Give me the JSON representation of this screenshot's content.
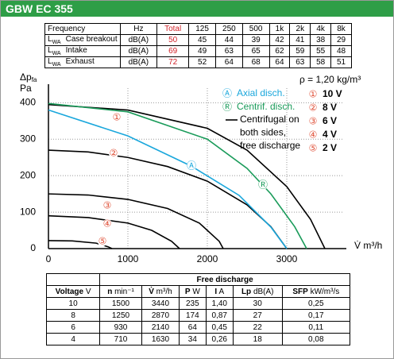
{
  "header": {
    "title": "GBW EC 355"
  },
  "sound_table": {
    "columns": [
      "Frequency",
      "Hz",
      "Total",
      "125",
      "250",
      "500",
      "1k",
      "2k",
      "4k",
      "8k"
    ],
    "rows": [
      {
        "symbol": "L",
        "symbol_sub": "WA",
        "name": "Case breakout",
        "unit": "dB(A)",
        "total": 50,
        "bands": [
          45,
          44,
          39,
          42,
          41,
          38,
          29
        ]
      },
      {
        "symbol": "L",
        "symbol_sub": "WA",
        "name": "Intake",
        "unit": "dB(A)",
        "total": 69,
        "bands": [
          49,
          63,
          65,
          62,
          59,
          55,
          48
        ]
      },
      {
        "symbol": "L",
        "symbol_sub": "WA",
        "name": "Exhaust",
        "unit": "dB(A)",
        "total": 72,
        "bands": [
          52,
          64,
          68,
          64,
          63,
          58,
          51
        ]
      }
    ]
  },
  "chart_data": {
    "type": "line",
    "y_label": "Δp",
    "y_label_sub": "fa",
    "y_unit": "Pa",
    "x_label": "V̇ m³/h",
    "note": "ρ = 1,20 kg/m³",
    "xlim": [
      0,
      3700
    ],
    "ylim": [
      0,
      440
    ],
    "xticks": [
      0,
      1000,
      2000,
      3000
    ],
    "yticks": [
      0,
      100,
      200,
      300,
      400
    ],
    "grid": true,
    "line_legend": [
      "Centrifugal on",
      "both sides,",
      "free discharge"
    ],
    "series": [
      {
        "name": "10 V",
        "marker": "①",
        "marker_color": "#e0523a",
        "color": "#000000",
        "x": [
          0,
          1000,
          2000,
          2500,
          3000,
          3300,
          3480
        ],
        "values": [
          395,
          380,
          330,
          270,
          170,
          80,
          0
        ]
      },
      {
        "name": "8 V",
        "marker": "②",
        "marker_color": "#e0523a",
        "color": "#000000",
        "x": [
          0,
          500,
          1000,
          1500,
          2000,
          2500,
          2800,
          3000
        ],
        "values": [
          270,
          265,
          250,
          225,
          185,
          120,
          60,
          0
        ]
      },
      {
        "name": "6 V",
        "marker": "③",
        "marker_color": "#e0523a",
        "color": "#000000",
        "x": [
          0,
          500,
          1000,
          1500,
          1900,
          2150,
          2200
        ],
        "values": [
          150,
          147,
          135,
          110,
          70,
          20,
          0
        ]
      },
      {
        "name": "4 V",
        "marker": "④",
        "marker_color": "#e0523a",
        "color": "#000000",
        "x": [
          0,
          500,
          1000,
          1300,
          1550,
          1650
        ],
        "values": [
          90,
          85,
          70,
          50,
          20,
          0
        ]
      },
      {
        "name": "2 V",
        "marker": "⑤",
        "marker_color": "#e0523a",
        "color": "#000000",
        "x": [
          0,
          300,
          600,
          750,
          800
        ],
        "values": [
          22,
          21,
          15,
          5,
          0
        ]
      },
      {
        "name": "Axial disch.",
        "marker": "Ⓐ",
        "color": "#1aa7dc",
        "x": [
          0,
          1000,
          1800,
          2400,
          2800,
          3000
        ],
        "values": [
          380,
          309,
          226,
          146,
          59,
          0
        ]
      },
      {
        "name": "Centrif. disch.",
        "marker": "Ⓡ",
        "color": "#1a9b5a",
        "x": [
          0,
          1000,
          2000,
          2500,
          2800,
          3100,
          3250
        ],
        "values": [
          398,
          375,
          300,
          220,
          150,
          60,
          0
        ]
      }
    ]
  },
  "performance_table": {
    "group_header": "Free discharge",
    "columns": [
      {
        "symbol": "Voltage",
        "unit": "V"
      },
      {
        "symbol": "n",
        "unit": "min⁻¹"
      },
      {
        "symbol": "V̇",
        "unit": "m³/h"
      },
      {
        "symbol": "P",
        "unit": "W"
      },
      {
        "symbol": "I",
        "unit": "A"
      },
      {
        "symbol": "Lp",
        "unit": "dB(A)"
      },
      {
        "symbol": "SFP",
        "unit": "kW/m³/s"
      }
    ],
    "rows": [
      [
        "10",
        "1500",
        "3440",
        "235",
        "1,40",
        "30",
        "0,25"
      ],
      [
        "8",
        "1250",
        "2870",
        "174",
        "0,87",
        "27",
        "0,17"
      ],
      [
        "6",
        "930",
        "2140",
        "64",
        "0,45",
        "22",
        "0,11"
      ],
      [
        "4",
        "710",
        "1630",
        "34",
        "0,26",
        "18",
        "0,08"
      ]
    ]
  }
}
